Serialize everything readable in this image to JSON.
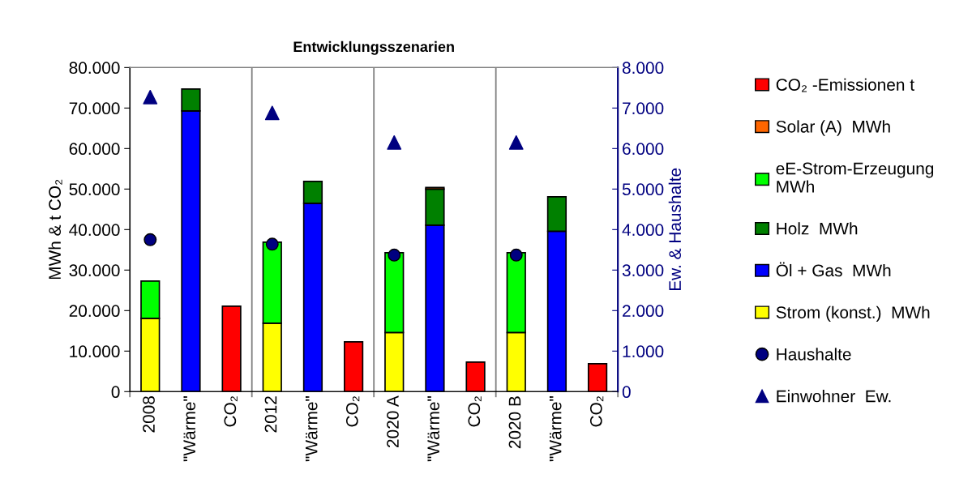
{
  "chart_data": {
    "type": "bar",
    "title": "Entwicklungsszenarien",
    "ylabel": "MWh & t CO₂",
    "y2label": "Ew. & Haushalte",
    "categories": [
      "2008",
      "\"Wärme\"",
      "CO₂",
      "2012",
      "\"Wärme\"",
      "CO₂",
      "2020 A",
      "\"Wärme\"",
      "CO₂",
      "2020 B",
      "\"Wärme\"",
      "CO₂"
    ],
    "stacked": true,
    "series": [
      {
        "name": "Strom (konst.)  MWh",
        "color": "#ffff00",
        "values": [
          18100,
          null,
          null,
          16900,
          null,
          null,
          14600,
          null,
          null,
          14600,
          null,
          null
        ]
      },
      {
        "name": "Öl + Gas  MWh",
        "color": "#0000ff",
        "values": [
          null,
          69300,
          null,
          null,
          46500,
          null,
          null,
          41100,
          null,
          null,
          39600,
          null
        ]
      },
      {
        "name": "Holz  MWh",
        "color": "#008000",
        "values": [
          null,
          5400,
          null,
          null,
          5400,
          null,
          null,
          8900,
          null,
          null,
          8500,
          null
        ]
      },
      {
        "name": "eE-Strom-Erzeugung MWh",
        "color": "#00ff00",
        "values": [
          9200,
          null,
          null,
          20000,
          null,
          null,
          19700,
          null,
          null,
          19700,
          null,
          null
        ]
      },
      {
        "name": "Solar (A)  MWh",
        "color": "#ff6600",
        "values": [
          null,
          null,
          null,
          null,
          null,
          null,
          null,
          400,
          null,
          null,
          null,
          null
        ]
      },
      {
        "name": "CO₂ -Emissionen t",
        "color": "#ff0000",
        "values": [
          null,
          null,
          21100,
          null,
          null,
          12300,
          null,
          null,
          7300,
          null,
          null,
          6900
        ]
      },
      {
        "name": "Haushalte",
        "type": "scatter",
        "axis": "y2",
        "marker": "circle",
        "color": "#000080",
        "values": [
          3750,
          null,
          null,
          3640,
          null,
          null,
          3370,
          null,
          null,
          3370,
          null,
          null
        ]
      },
      {
        "name": "Einwohner  Ew.",
        "type": "scatter",
        "axis": "y2",
        "marker": "triangle",
        "color": "#000080",
        "values": [
          7270,
          null,
          null,
          6880,
          null,
          null,
          6150,
          null,
          null,
          6150,
          null,
          null
        ]
      }
    ],
    "ylim": [
      0,
      80000
    ],
    "yticks": [
      {
        "value": 0,
        "label": "0"
      },
      {
        "value": 10000,
        "label": "10.000"
      },
      {
        "value": 20000,
        "label": "20.000"
      },
      {
        "value": 30000,
        "label": "30.000"
      },
      {
        "value": 40000,
        "label": "40.000"
      },
      {
        "value": 50000,
        "label": "50.000"
      },
      {
        "value": 60000,
        "label": "60.000"
      },
      {
        "value": 70000,
        "label": "70.000"
      },
      {
        "value": 80000,
        "label": "80.000"
      }
    ],
    "y2lim": [
      0,
      8000
    ],
    "y2ticks": [
      {
        "value": 0,
        "label": "0"
      },
      {
        "value": 1000,
        "label": "1.000"
      },
      {
        "value": 2000,
        "label": "2.000"
      },
      {
        "value": 3000,
        "label": "3.000"
      },
      {
        "value": 4000,
        "label": "4.000"
      },
      {
        "value": 5000,
        "label": "5.000"
      },
      {
        "value": 6000,
        "label": "6.000"
      },
      {
        "value": 7000,
        "label": "7.000"
      },
      {
        "value": 8000,
        "label": "8.000"
      }
    ],
    "grid": "x",
    "legend": "right"
  }
}
